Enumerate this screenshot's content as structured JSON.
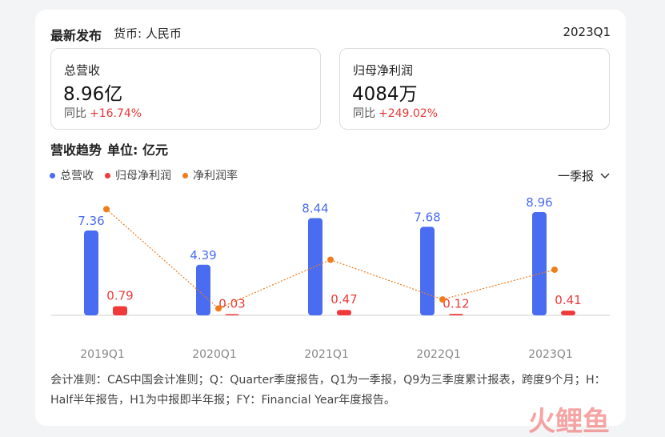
{
  "header": {
    "title": "最新发布",
    "currency": "货币: 人民币",
    "period": "2023Q1"
  },
  "kpis": {
    "revenue": {
      "label": "总营收",
      "value": "8.96亿",
      "yoy_label": "同比",
      "yoy": "+16.74%"
    },
    "profit": {
      "label": "归母净利润",
      "value": "4084万",
      "yoy_label": "同比",
      "yoy": "+249.02%"
    }
  },
  "section": {
    "title": "营收趋势",
    "unit": "单位: 亿元"
  },
  "legend": {
    "revenue": "总营收",
    "profit": "归母净利润",
    "margin": "净利润率"
  },
  "dropdown": {
    "selected": "一季报"
  },
  "colors": {
    "revenue": "#4a6cf0",
    "profit": "#f03a3a",
    "margin": "#f07c1a",
    "up": "#e53935"
  },
  "chart_data": {
    "type": "bar",
    "categories": [
      "2019Q1",
      "2020Q1",
      "2021Q1",
      "2022Q1",
      "2023Q1"
    ],
    "series": [
      {
        "name": "总营收",
        "type": "bar",
        "values": [
          7.36,
          4.39,
          8.44,
          7.68,
          8.96
        ],
        "labels": [
          "7.36",
          "4.39",
          "8.44",
          "7.68",
          "8.96"
        ]
      },
      {
        "name": "归母净利润",
        "type": "bar",
        "values": [
          0.79,
          0.03,
          0.47,
          0.12,
          0.41
        ],
        "labels": [
          "0.79",
          "0.03",
          "0.47",
          "0.12",
          "0.41"
        ]
      },
      {
        "name": "净利润率",
        "type": "line",
        "values": [
          10.7,
          0.7,
          5.6,
          1.6,
          4.6
        ]
      }
    ],
    "ylim": [
      0,
      9.5
    ],
    "grid": false,
    "legend_position": "top-left"
  },
  "footnote": "会计准则：CAS中国会计准则；Q：Quarter季度报告，Q1为一季报，Q9为三季度累计报表，跨度9个月；H：Half半年报告，H1为中报即半年报；FY：Financial Year年度报告。",
  "watermark": "火鲤鱼"
}
